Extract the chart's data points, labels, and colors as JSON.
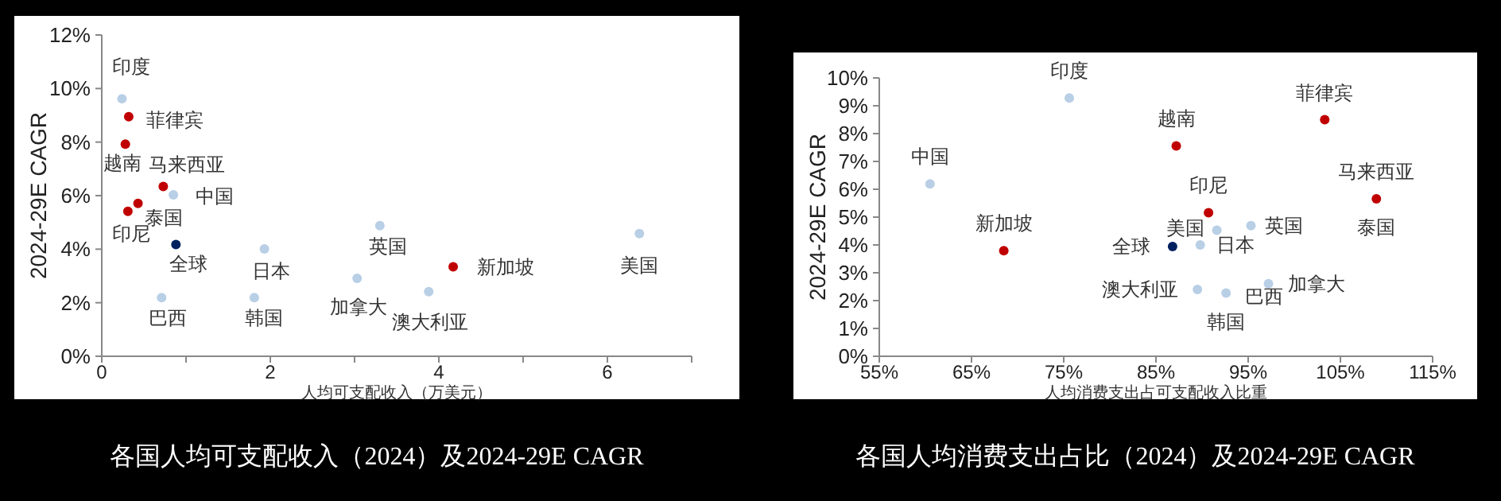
{
  "chart_data": [
    {
      "type": "scatter",
      "title": "各国人均可支配收入（2024）及2024-29E CAGR",
      "xlabel": "人均可支配收入（万美元）",
      "ylabel": "2024-29E CAGR",
      "marker": "circle",
      "xlim": [
        0,
        7
      ],
      "xticks": [
        0,
        {
          "value": 1,
          "label": null
        },
        2,
        {
          "value": 3,
          "label": null
        },
        4,
        {
          "value": 5,
          "label": null
        },
        6,
        {
          "value": 7,
          "label": null
        }
      ],
      "ylim": [
        0,
        12
      ],
      "yticks": [
        {
          "value": 0,
          "label": "0%"
        },
        {
          "value": 2,
          "label": "2%"
        },
        {
          "value": 4,
          "label": "4%"
        },
        {
          "value": 6,
          "label": "6%"
        },
        {
          "value": 8,
          "label": "8%"
        },
        {
          "value": 10,
          "label": "10%"
        },
        {
          "value": 12,
          "label": "12%"
        }
      ],
      "series": [
        {
          "color": "#b8cfe6",
          "x": [
            0.24,
            0.85,
            0.71,
            1.93,
            1.81,
            3.3,
            3.03,
            3.88,
            6.38
          ],
          "values": [
            9.62,
            6.03,
            2.19,
            4.01,
            2.19,
            4.88,
            2.91,
            2.41,
            4.58
          ]
        },
        {
          "color": "#c00000",
          "x": [
            0.32,
            0.28,
            0.73,
            0.43,
            0.31,
            4.17
          ],
          "values": [
            8.95,
            7.92,
            6.34,
            5.71,
            5.41,
            3.34
          ]
        },
        {
          "color": "#002060",
          "x": [
            0.88
          ],
          "values": [
            4.17
          ]
        }
      ],
      "annotations": [
        {
          "text": "印度",
          "x": 0.24,
          "y": 9.62
        },
        {
          "text": "菲律宾",
          "x": 0.32,
          "y": 8.95
        },
        {
          "text": "越南",
          "x": 0.28,
          "y": 7.92
        },
        {
          "text": "马来西亚",
          "x": 0.73,
          "y": 6.34
        },
        {
          "text": "中国",
          "x": 0.85,
          "y": 6.03
        },
        {
          "text": "泰国",
          "x": 0.43,
          "y": 5.71
        },
        {
          "text": "印尼",
          "x": 0.31,
          "y": 5.41
        },
        {
          "text": "全球",
          "x": 0.88,
          "y": 4.17
        },
        {
          "text": "巴西",
          "x": 0.71,
          "y": 2.19
        },
        {
          "text": "日本",
          "x": 1.93,
          "y": 4.01
        },
        {
          "text": "韩国",
          "x": 1.81,
          "y": 2.19
        },
        {
          "text": "英国",
          "x": 3.3,
          "y": 4.88
        },
        {
          "text": "加拿大",
          "x": 3.03,
          "y": 2.91
        },
        {
          "text": "澳大利亚",
          "x": 3.88,
          "y": 2.41
        },
        {
          "text": "新加坡",
          "x": 4.17,
          "y": 3.34
        },
        {
          "text": "美国",
          "x": 6.38,
          "y": 4.58
        }
      ]
    },
    {
      "type": "scatter",
      "title": "各国人均消费支出占比（2024）及2024-29E CAGR",
      "xlabel": "人均消费支出占可支配收入比重",
      "ylabel": "2024-29E CAGR",
      "marker": "circle",
      "xlim": [
        55,
        115
      ],
      "xticks": [
        {
          "value": 55,
          "label": "55%"
        },
        {
          "value": 65,
          "label": "65%"
        },
        {
          "value": 75,
          "label": "75%"
        },
        {
          "value": 85,
          "label": "85%"
        },
        {
          "value": 95,
          "label": "95%"
        },
        {
          "value": 105,
          "label": "105%"
        },
        {
          "value": 115,
          "label": "115%"
        }
      ],
      "ylim": [
        0,
        10
      ],
      "yticks": [
        {
          "value": 0,
          "label": "0%"
        },
        {
          "value": 1,
          "label": "1%"
        },
        {
          "value": 2,
          "label": "2%"
        },
        {
          "value": 3,
          "label": "3%"
        },
        {
          "value": 4,
          "label": "4%"
        },
        {
          "value": 5,
          "label": "5%"
        },
        {
          "value": 6,
          "label": "6%"
        },
        {
          "value": 7,
          "label": "7%"
        },
        {
          "value": 8,
          "label": "8%"
        },
        {
          "value": 9,
          "label": "9%"
        },
        {
          "value": 10,
          "label": "10%"
        }
      ],
      "series": [
        {
          "color": "#b8cfe6",
          "x": [
            75.6,
            60.5,
            92.6,
            89.8,
            null,
            95.3,
            97.2,
            89.5,
            91.6
          ],
          "values": [
            9.28,
            6.19,
            2.27,
            4.0,
            null,
            4.69,
            2.61,
            2.4,
            4.53
          ]
        },
        {
          "color": "#c00000",
          "x": [
            103.3,
            87.2,
            108.9,
            null,
            90.7,
            68.5
          ],
          "values": [
            8.5,
            7.56,
            5.66,
            null,
            5.16,
            3.79
          ]
        },
        {
          "color": "#002060",
          "x": [
            86.8
          ],
          "values": [
            3.94
          ]
        }
      ],
      "annotations": [
        {
          "text": "印度",
          "x": 75.6,
          "y": 9.28
        },
        {
          "text": "菲律宾",
          "x": 103.3,
          "y": 8.5
        },
        {
          "text": "越南",
          "x": 87.2,
          "y": 7.56
        },
        {
          "text": "马来西亚",
          "x": 108.9,
          "y": 5.66
        },
        {
          "text": "中国",
          "x": 60.5,
          "y": 6.19
        },
        {
          "text": "泰国",
          "x": 108.9,
          "y": 5.66
        },
        {
          "text": "印尼",
          "x": 90.7,
          "y": 5.16
        },
        {
          "text": "全球",
          "x": 86.8,
          "y": 3.94
        },
        {
          "text": "巴西",
          "x": 92.6,
          "y": 2.27
        },
        {
          "text": "日本",
          "x": 89.8,
          "y": 4.0
        },
        {
          "text": "韩国",
          "x": 92.6,
          "y": 2.27
        },
        {
          "text": "英国",
          "x": 95.3,
          "y": 4.69
        },
        {
          "text": "加拿大",
          "x": 97.2,
          "y": 2.61
        },
        {
          "text": "澳大利亚",
          "x": 89.5,
          "y": 2.4
        },
        {
          "text": "新加坡",
          "x": 68.5,
          "y": 3.79
        },
        {
          "text": "美国",
          "x": 91.6,
          "y": 4.53
        }
      ]
    }
  ]
}
